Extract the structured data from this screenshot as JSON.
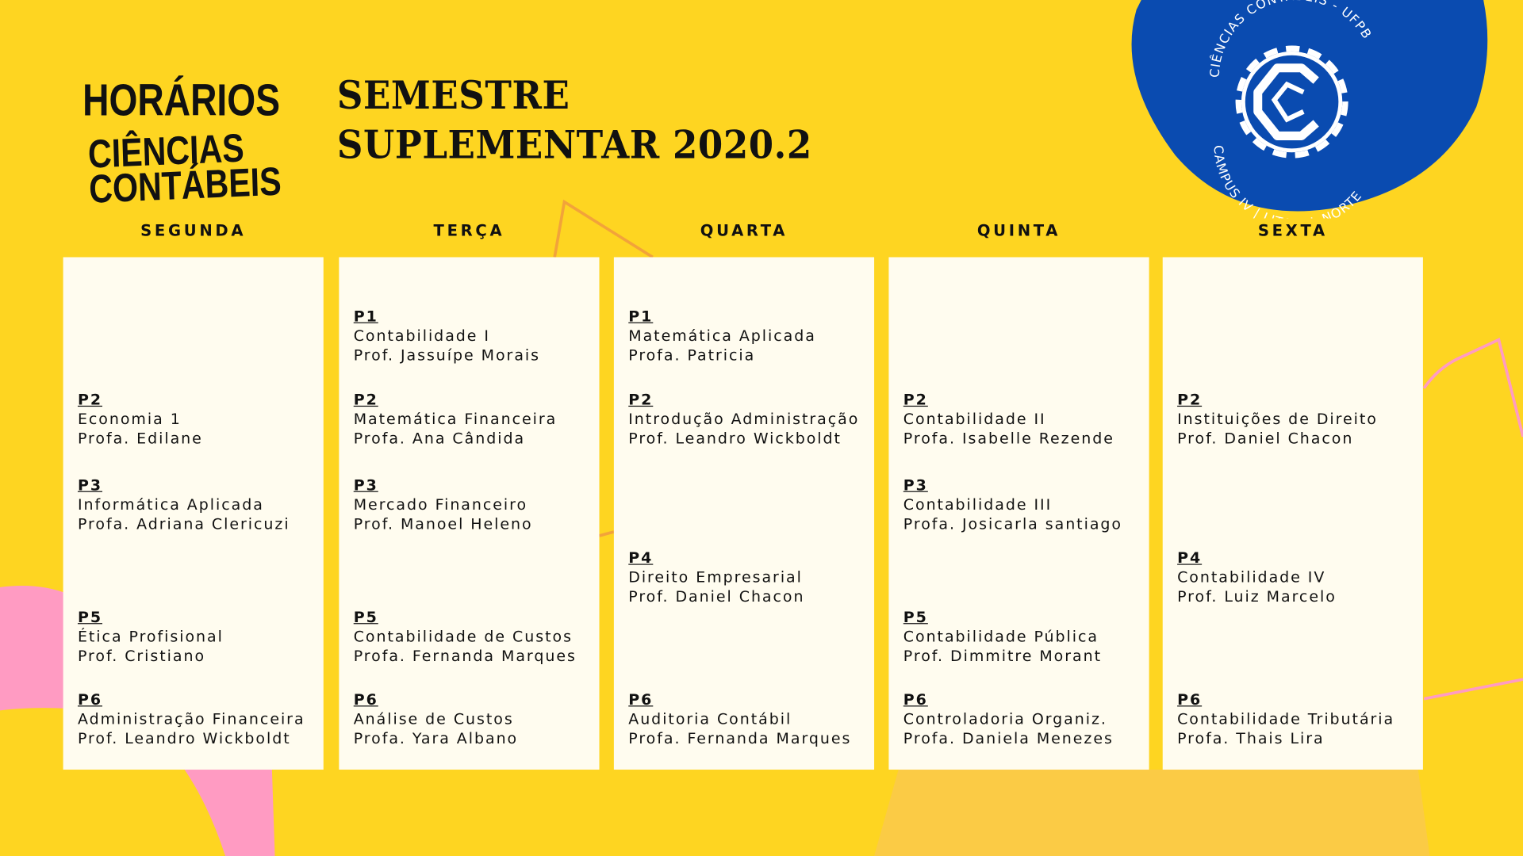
{
  "header": {
    "title_line1": "HORÁRIOS",
    "title_line2": "CIÊNCIAS",
    "title_line3": "CONTÁBEIS",
    "subtitle_line1": "SEMESTRE",
    "subtitle_line2": "SUPLEMENTAR 2020.2"
  },
  "logo": {
    "top_text": "CIÊNCIAS CONTÁBEIS - UFPB",
    "bottom_text": "CAMPUS IV | LITORAL NORTE",
    "icon": "gear-c-icon",
    "color": "#0A4BB0"
  },
  "colors": {
    "background": "#FED521",
    "card": "#FFFCEF",
    "pink": "#FF9BC2",
    "orange": "#F2A33A"
  },
  "days": [
    {
      "day": "SEGUNDA",
      "entries": [
        {
          "slot": "P2",
          "course": "Economia 1",
          "prof": "Profa. Edilane"
        },
        {
          "slot": "P3",
          "course": "Informática Aplicada",
          "prof": "Profa. Adriana Clericuzi"
        },
        {
          "slot": "P5",
          "course": "Ética Profisional",
          "prof": "Prof. Cristiano"
        },
        {
          "slot": "P6",
          "course": "Administração Financeira",
          "prof": "Prof. Leandro Wickboldt"
        }
      ]
    },
    {
      "day": "TERÇA",
      "entries": [
        {
          "slot": "P1",
          "course": "Contabilidade I",
          "prof": "Prof. Jassuípe Morais"
        },
        {
          "slot": "P2",
          "course": "Matemática Financeira",
          "prof": "Profa. Ana Cândida"
        },
        {
          "slot": "P3",
          "course": "Mercado Financeiro",
          "prof": "Prof. Manoel Heleno"
        },
        {
          "slot": "P5",
          "course": "Contabilidade de Custos",
          "prof": "Profa. Fernanda Marques"
        },
        {
          "slot": "P6",
          "course": "Análise de Custos",
          "prof": "Profa. Yara Albano"
        }
      ]
    },
    {
      "day": "QUARTA",
      "entries": [
        {
          "slot": "P1",
          "course": "Matemática Aplicada",
          "prof": "Profa. Patricia"
        },
        {
          "slot": "P2",
          "course": "Introdução Administração",
          "prof": "Prof.  Leandro Wickboldt"
        },
        {
          "slot": "P4",
          "course": "Direito Empresarial",
          "prof": "Prof. Daniel Chacon"
        },
        {
          "slot": "P6",
          "course": "Auditoria Contábil",
          "prof": "Profa. Fernanda Marques"
        }
      ]
    },
    {
      "day": "QUINTA",
      "entries": [
        {
          "slot": "P2",
          "course": "Contabilidade II",
          "prof": "Profa. Isabelle Rezende"
        },
        {
          "slot": "P3",
          "course": "Contabilidade III",
          "prof": "Profa. Josicarla santiago"
        },
        {
          "slot": "P5",
          "course": "Contabilidade Pública",
          "prof": "Prof. Dimmitre Morant"
        },
        {
          "slot": "P6",
          "course": "Controladoria Organiz.",
          "prof": "Profa. Daniela Menezes"
        }
      ]
    },
    {
      "day": "SEXTA",
      "entries": [
        {
          "slot": "P2",
          "course": "Instituições de Direito",
          "prof": "Prof. Daniel Chacon"
        },
        {
          "slot": "P4",
          "course": "Contabilidade IV",
          "prof": "Prof. Luiz Marcelo"
        },
        {
          "slot": "P6",
          "course": "Contabilidade Tributária",
          "prof": "Profa. Thais Lira"
        }
      ]
    }
  ]
}
